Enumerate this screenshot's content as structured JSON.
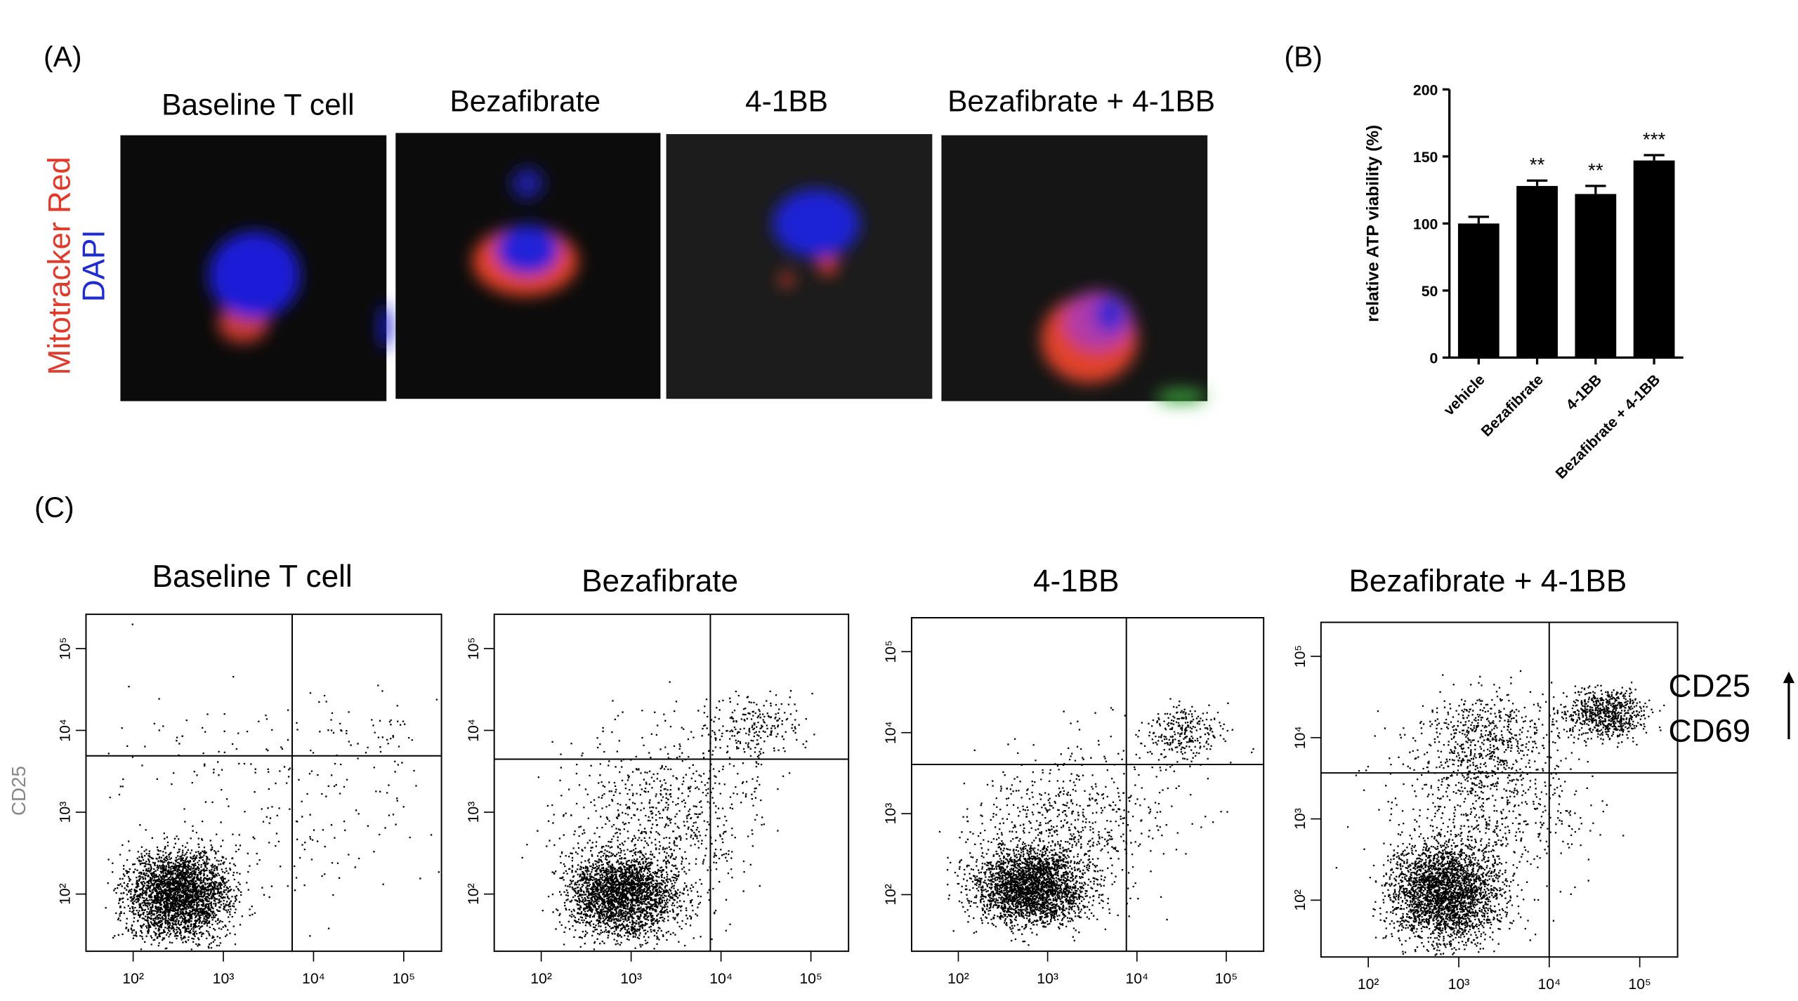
{
  "panel_a": {
    "label": "(A)",
    "titles": [
      "Baseline T cell",
      "Bezafibrate",
      "4-1BB",
      "Bezafibrate + 4-1BB"
    ],
    "stain_red": "Mitotracker Red",
    "stain_blue": "DAPI"
  },
  "chart_data": {
    "type": "bar",
    "label": "(B)",
    "y_label": "relative ATP viability (%)",
    "categories": [
      "vehicle",
      "Bezafibrate",
      "4-1BB",
      "Bezafibrate + 4-1BB"
    ],
    "values": [
      100,
      128,
      122,
      147
    ],
    "errors": [
      5,
      4,
      6,
      4
    ],
    "annotations": [
      null,
      "**",
      "**",
      "***"
    ],
    "color": "#000000",
    "ylim": [
      0,
      200
    ],
    "yticks": [
      0,
      50,
      100,
      150,
      200
    ]
  },
  "panel_c": {
    "label": "(C)",
    "titles": [
      "Baseline T cell",
      "Bezafibrate",
      "4-1BB",
      "Bezafibrate + 4-1BB"
    ],
    "y_label": "CD25",
    "right_labels": [
      "CD25",
      "CD69"
    ],
    "log_scale": true,
    "xlim": [
      30,
      262144
    ],
    "ylim": [
      20,
      262144
    ],
    "xticks": [
      {
        "value": 100,
        "label": "10²"
      },
      {
        "value": 1000,
        "label": "10³"
      },
      {
        "value": 10000,
        "label": "10⁴"
      },
      {
        "value": 100000,
        "label": "10⁵"
      }
    ],
    "yticks": [
      {
        "value": 100,
        "label": "10²"
      },
      {
        "value": 1000,
        "label": "10³"
      },
      {
        "value": 10000,
        "label": "10⁴"
      },
      {
        "value": 100000,
        "label": "10⁵"
      }
    ]
  }
}
